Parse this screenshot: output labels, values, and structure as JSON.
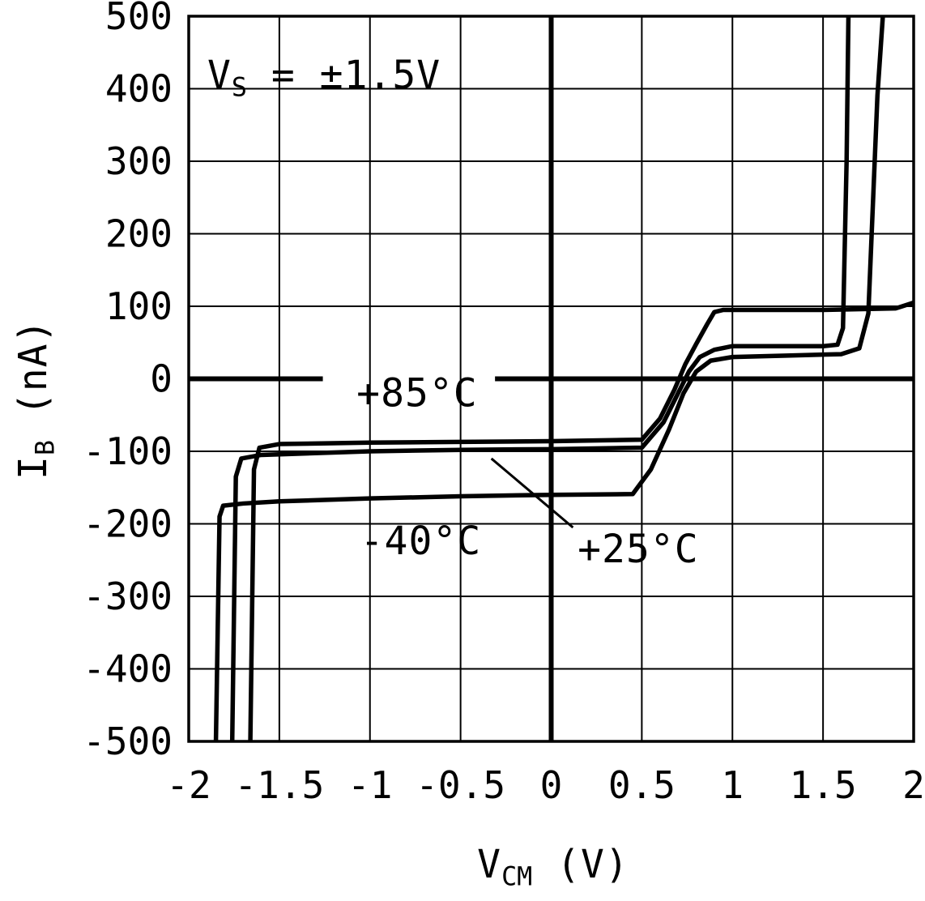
{
  "page": {
    "background": "#ffffff",
    "foreground": "#000000"
  },
  "chart_data": {
    "type": "line",
    "title": "",
    "vs_annotation": {
      "pre": "V",
      "sub": "S",
      "post": " = ±1.5V"
    },
    "xlabel_parts": {
      "pre": "V",
      "sub": "CM",
      "post": " (V)"
    },
    "ylabel_parts": {
      "pre": "I",
      "sub": "B",
      "post": " (nA)"
    },
    "xlim": [
      -2,
      2
    ],
    "ylim": [
      -500,
      500
    ],
    "grid": true,
    "legend_position": "none",
    "line_color": "#000000",
    "xticks": {
      "values": [
        -2,
        -1.5,
        -1,
        -0.5,
        0,
        0.5,
        1,
        1.5,
        2
      ],
      "labels": [
        "-2",
        "-1.5",
        "-1",
        "-0.5",
        "0",
        "0.5",
        "1",
        "1.5",
        "2"
      ]
    },
    "yticks": {
      "values": [
        500,
        400,
        300,
        200,
        100,
        0,
        -100,
        -200,
        -300,
        -400,
        -500
      ],
      "labels": [
        "500",
        "400",
        "300",
        "200",
        "100",
        "0",
        "-100",
        "-200",
        "-300",
        "-400",
        "-500"
      ]
    },
    "zero_lines": {
      "x_value": 0,
      "y_segments": [
        [
          -2,
          -1.26
        ],
        [
          -0.31,
          2
        ]
      ]
    },
    "series": [
      {
        "name": "+85°C",
        "points": [
          [
            -1.66,
            -500
          ],
          [
            -1.64,
            -125
          ],
          [
            -1.61,
            -95
          ],
          [
            -1.5,
            -90
          ],
          [
            -1.0,
            -88
          ],
          [
            -0.5,
            -87
          ],
          [
            0.0,
            -86
          ],
          [
            0.5,
            -84
          ],
          [
            0.6,
            -55
          ],
          [
            0.68,
            -15
          ],
          [
            0.74,
            20
          ],
          [
            0.8,
            48
          ],
          [
            0.86,
            75
          ],
          [
            0.9,
            92
          ],
          [
            0.95,
            95
          ],
          [
            1.5,
            95
          ],
          [
            1.9,
            97
          ],
          [
            2.0,
            105
          ]
        ]
      },
      {
        "name": "+25°C",
        "points": [
          [
            -1.76,
            -500
          ],
          [
            -1.74,
            -135
          ],
          [
            -1.71,
            -110
          ],
          [
            -1.6,
            -105
          ],
          [
            -1.0,
            -100
          ],
          [
            -0.5,
            -98
          ],
          [
            0.0,
            -97
          ],
          [
            0.5,
            -95
          ],
          [
            0.62,
            -60
          ],
          [
            0.7,
            -20
          ],
          [
            0.76,
            10
          ],
          [
            0.82,
            30
          ],
          [
            0.9,
            40
          ],
          [
            1.0,
            45
          ],
          [
            1.5,
            45
          ],
          [
            1.58,
            47
          ],
          [
            1.61,
            70
          ],
          [
            1.63,
            300
          ],
          [
            1.64,
            500
          ]
        ]
      },
      {
        "name": "-40°C",
        "points": [
          [
            -1.85,
            -500
          ],
          [
            -1.83,
            -190
          ],
          [
            -1.81,
            -175
          ],
          [
            -1.7,
            -172
          ],
          [
            -1.5,
            -169
          ],
          [
            -1.0,
            -165
          ],
          [
            -0.5,
            -162
          ],
          [
            0.0,
            -160
          ],
          [
            0.45,
            -159
          ],
          [
            0.55,
            -125
          ],
          [
            0.65,
            -70
          ],
          [
            0.73,
            -20
          ],
          [
            0.8,
            10
          ],
          [
            0.88,
            25
          ],
          [
            1.0,
            30
          ],
          [
            1.3,
            32
          ],
          [
            1.6,
            34
          ],
          [
            1.7,
            42
          ],
          [
            1.75,
            90
          ],
          [
            1.8,
            390
          ],
          [
            1.83,
            500
          ]
        ]
      }
    ],
    "annotations": {
      "labels": [
        {
          "text": "+85°C",
          "x": -0.74,
          "y": -20
        },
        {
          "text": "-40°C",
          "x": -0.72,
          "y": -224
        },
        {
          "text": "+25°C",
          "x": 0.48,
          "y": -235
        }
      ],
      "leader_line": {
        "from": [
          -0.33,
          -110
        ],
        "to": [
          0.12,
          -205
        ]
      }
    }
  }
}
